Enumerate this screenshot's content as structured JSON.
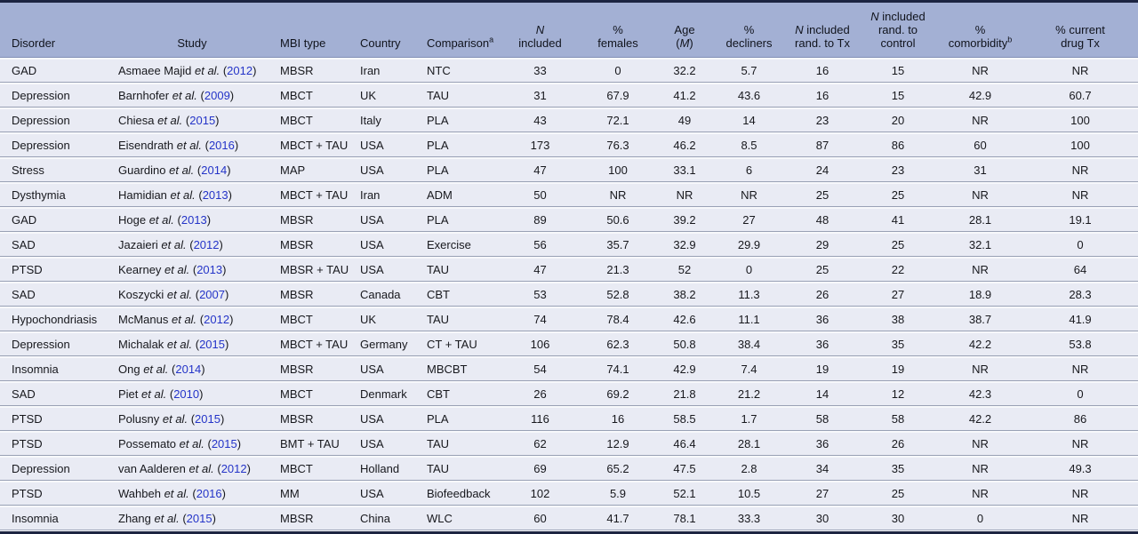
{
  "punct": {
    "open": "(",
    "close": ")"
  },
  "colors": {
    "top_bottom_rule": "#1c2441",
    "header_bg": "#a3b0d4",
    "row_bg": "#e9ebf4",
    "row_separator": "#99a1b5",
    "year_link": "#2434c8",
    "body_text": "#17181d"
  },
  "table": {
    "columns": [
      {
        "id": "disorder",
        "lines": [
          [
            {
              "t": "Disorder"
            }
          ]
        ]
      },
      {
        "id": "study",
        "lines": [
          [
            {
              "t": "Study"
            }
          ]
        ]
      },
      {
        "id": "mbi",
        "lines": [
          [
            {
              "t": "MBI type"
            }
          ]
        ]
      },
      {
        "id": "country",
        "lines": [
          [
            {
              "t": "Country"
            }
          ]
        ]
      },
      {
        "id": "comparison",
        "lines": [
          [
            {
              "t": "Comparison"
            },
            {
              "t": "a",
              "sup": true
            }
          ]
        ]
      },
      {
        "id": "n_included",
        "lines": [
          [
            {
              "t": "N",
              "i": true
            }
          ],
          [
            {
              "t": "included"
            }
          ]
        ]
      },
      {
        "id": "pct_females",
        "lines": [
          [
            {
              "t": "%"
            }
          ],
          [
            {
              "t": "females"
            }
          ]
        ]
      },
      {
        "id": "age_m",
        "lines": [
          [
            {
              "t": "Age"
            }
          ],
          [
            {
              "t": "("
            },
            {
              "t": "M",
              "i": true
            },
            {
              "t": ")"
            }
          ]
        ]
      },
      {
        "id": "pct_decliners",
        "lines": [
          [
            {
              "t": "%"
            }
          ],
          [
            {
              "t": "decliners"
            }
          ]
        ]
      },
      {
        "id": "n_rand_tx",
        "lines": [
          [
            {
              "t": "N",
              "i": true
            },
            {
              "t": " included"
            }
          ],
          [
            {
              "t": "rand. to Tx"
            }
          ]
        ]
      },
      {
        "id": "n_rand_control",
        "lines": [
          [
            {
              "t": "N",
              "i": true
            },
            {
              "t": " included"
            }
          ],
          [
            {
              "t": "rand. to"
            }
          ],
          [
            {
              "t": "control"
            }
          ]
        ]
      },
      {
        "id": "pct_comorbidity",
        "lines": [
          [
            {
              "t": "%"
            }
          ],
          [
            {
              "t": "comorbidity"
            },
            {
              "t": "b",
              "sup": true
            }
          ]
        ]
      },
      {
        "id": "pct_drug_tx",
        "lines": [
          [
            {
              "t": "% current"
            }
          ],
          [
            {
              "t": "drug Tx"
            }
          ]
        ]
      }
    ],
    "rows": [
      {
        "disorder": "GAD",
        "study_name": "Asmaee Majid",
        "study_suffix": "et al.",
        "year": "2012",
        "mbi": "MBSR",
        "country": "Iran",
        "comparison": "NTC",
        "n_included": "33",
        "pct_females": "0",
        "age_m": "32.2",
        "pct_decliners": "5.7",
        "n_rand_tx": "16",
        "n_rand_control": "15",
        "pct_comorbidity": "NR",
        "pct_drug_tx": "NR"
      },
      {
        "disorder": "Depression",
        "study_name": "Barnhofer",
        "study_suffix": "et al.",
        "year": "2009",
        "mbi": "MBCT",
        "country": "UK",
        "comparison": "TAU",
        "n_included": "31",
        "pct_females": "67.9",
        "age_m": "41.2",
        "pct_decliners": "43.6",
        "n_rand_tx": "16",
        "n_rand_control": "15",
        "pct_comorbidity": "42.9",
        "pct_drug_tx": "60.7"
      },
      {
        "disorder": "Depression",
        "study_name": "Chiesa",
        "study_suffix": "et al.",
        "year": "2015",
        "mbi": "MBCT",
        "country": "Italy",
        "comparison": "PLA",
        "n_included": "43",
        "pct_females": "72.1",
        "age_m": "49",
        "pct_decliners": "14",
        "n_rand_tx": "23",
        "n_rand_control": "20",
        "pct_comorbidity": "NR",
        "pct_drug_tx": "100"
      },
      {
        "disorder": "Depression",
        "study_name": "Eisendrath",
        "study_suffix": "et al.",
        "year": "2016",
        "mbi": "MBCT + TAU",
        "country": "USA",
        "comparison": "PLA",
        "n_included": "173",
        "pct_females": "76.3",
        "age_m": "46.2",
        "pct_decliners": "8.5",
        "n_rand_tx": "87",
        "n_rand_control": "86",
        "pct_comorbidity": "60",
        "pct_drug_tx": "100"
      },
      {
        "disorder": "Stress",
        "study_name": "Guardino",
        "study_suffix": "et al.",
        "year": "2014",
        "mbi": "MAP",
        "country": "USA",
        "comparison": "PLA",
        "n_included": "47",
        "pct_females": "100",
        "age_m": "33.1",
        "pct_decliners": "6",
        "n_rand_tx": "24",
        "n_rand_control": "23",
        "pct_comorbidity": "31",
        "pct_drug_tx": "NR"
      },
      {
        "disorder": "Dysthymia",
        "study_name": "Hamidian",
        "study_suffix": "et al.",
        "year": "2013",
        "mbi": "MBCT + TAU",
        "country": "Iran",
        "comparison": "ADM",
        "n_included": "50",
        "pct_females": "NR",
        "age_m": "NR",
        "pct_decliners": "NR",
        "n_rand_tx": "25",
        "n_rand_control": "25",
        "pct_comorbidity": "NR",
        "pct_drug_tx": "NR"
      },
      {
        "disorder": "GAD",
        "study_name": "Hoge",
        "study_suffix": "et al.",
        "year": "2013",
        "mbi": "MBSR",
        "country": "USA",
        "comparison": "PLA",
        "n_included": "89",
        "pct_females": "50.6",
        "age_m": "39.2",
        "pct_decliners": "27",
        "n_rand_tx": "48",
        "n_rand_control": "41",
        "pct_comorbidity": "28.1",
        "pct_drug_tx": "19.1"
      },
      {
        "disorder": "SAD",
        "study_name": "Jazaieri",
        "study_suffix": "et al.",
        "year": "2012",
        "mbi": "MBSR",
        "country": "USA",
        "comparison": "Exercise",
        "n_included": "56",
        "pct_females": "35.7",
        "age_m": "32.9",
        "pct_decliners": "29.9",
        "n_rand_tx": "29",
        "n_rand_control": "25",
        "pct_comorbidity": "32.1",
        "pct_drug_tx": "0"
      },
      {
        "disorder": "PTSD",
        "study_name": "Kearney",
        "study_suffix": "et al.",
        "year": "2013",
        "mbi": "MBSR + TAU",
        "country": "USA",
        "comparison": "TAU",
        "n_included": "47",
        "pct_females": "21.3",
        "age_m": "52",
        "pct_decliners": "0",
        "n_rand_tx": "25",
        "n_rand_control": "22",
        "pct_comorbidity": "NR",
        "pct_drug_tx": "64"
      },
      {
        "disorder": "SAD",
        "study_name": "Koszycki",
        "study_suffix": "et al.",
        "year": "2007",
        "mbi": "MBSR",
        "country": "Canada",
        "comparison": "CBT",
        "n_included": "53",
        "pct_females": "52.8",
        "age_m": "38.2",
        "pct_decliners": "11.3",
        "n_rand_tx": "26",
        "n_rand_control": "27",
        "pct_comorbidity": "18.9",
        "pct_drug_tx": "28.3"
      },
      {
        "disorder": "Hypochondriasis",
        "study_name": "McManus",
        "study_suffix": "et al.",
        "year": "2012",
        "mbi": "MBCT",
        "country": "UK",
        "comparison": "TAU",
        "n_included": "74",
        "pct_females": "78.4",
        "age_m": "42.6",
        "pct_decliners": "11.1",
        "n_rand_tx": "36",
        "n_rand_control": "38",
        "pct_comorbidity": "38.7",
        "pct_drug_tx": "41.9"
      },
      {
        "disorder": "Depression",
        "study_name": "Michalak",
        "study_suffix": "et al.",
        "year": "2015",
        "mbi": "MBCT + TAU",
        "country": "Germany",
        "comparison": "CT + TAU",
        "n_included": "106",
        "pct_females": "62.3",
        "age_m": "50.8",
        "pct_decliners": "38.4",
        "n_rand_tx": "36",
        "n_rand_control": "35",
        "pct_comorbidity": "42.2",
        "pct_drug_tx": "53.8"
      },
      {
        "disorder": "Insomnia",
        "study_name": "Ong",
        "study_suffix": "et al.",
        "year": "2014",
        "mbi": "MBSR",
        "country": "USA",
        "comparison": "MBCBT",
        "n_included": "54",
        "pct_females": "74.1",
        "age_m": "42.9",
        "pct_decliners": "7.4",
        "n_rand_tx": "19",
        "n_rand_control": "19",
        "pct_comorbidity": "NR",
        "pct_drug_tx": "NR"
      },
      {
        "disorder": "SAD",
        "study_name": "Piet",
        "study_suffix": "et al.",
        "year": "2010",
        "mbi": "MBCT",
        "country": "Denmark",
        "comparison": "CBT",
        "n_included": "26",
        "pct_females": "69.2",
        "age_m": "21.8",
        "pct_decliners": "21.2",
        "n_rand_tx": "14",
        "n_rand_control": "12",
        "pct_comorbidity": "42.3",
        "pct_drug_tx": "0"
      },
      {
        "disorder": "PTSD",
        "study_name": "Polusny",
        "study_suffix": "et al.",
        "year": "2015",
        "mbi": "MBSR",
        "country": "USA",
        "comparison": "PLA",
        "n_included": "116",
        "pct_females": "16",
        "age_m": "58.5",
        "pct_decliners": "1.7",
        "n_rand_tx": "58",
        "n_rand_control": "58",
        "pct_comorbidity": "42.2",
        "pct_drug_tx": "86"
      },
      {
        "disorder": "PTSD",
        "study_name": "Possemato",
        "study_suffix": "et al.",
        "year": "2015",
        "mbi": "BMT + TAU",
        "country": "USA",
        "comparison": "TAU",
        "n_included": "62",
        "pct_females": "12.9",
        "age_m": "46.4",
        "pct_decliners": "28.1",
        "n_rand_tx": "36",
        "n_rand_control": "26",
        "pct_comorbidity": "NR",
        "pct_drug_tx": "NR"
      },
      {
        "disorder": "Depression",
        "study_name": "van Aalderen",
        "study_suffix": "et al.",
        "year": "2012",
        "mbi": "MBCT",
        "country": "Holland",
        "comparison": "TAU",
        "n_included": "69",
        "pct_females": "65.2",
        "age_m": "47.5",
        "pct_decliners": "2.8",
        "n_rand_tx": "34",
        "n_rand_control": "35",
        "pct_comorbidity": "NR",
        "pct_drug_tx": "49.3"
      },
      {
        "disorder": "PTSD",
        "study_name": "Wahbeh",
        "study_suffix": "et al.",
        "year": "2016",
        "mbi": "MM",
        "country": "USA",
        "comparison": "Biofeedback",
        "n_included": "102",
        "pct_females": "5.9",
        "age_m": "52.1",
        "pct_decliners": "10.5",
        "n_rand_tx": "27",
        "n_rand_control": "25",
        "pct_comorbidity": "NR",
        "pct_drug_tx": "NR"
      },
      {
        "disorder": "Insomnia",
        "study_name": "Zhang",
        "study_suffix": "et al.",
        "year": "2015",
        "mbi": "MBSR",
        "country": "China",
        "comparison": "WLC",
        "n_included": "60",
        "pct_females": "41.7",
        "age_m": "78.1",
        "pct_decliners": "33.3",
        "n_rand_tx": "30",
        "n_rand_control": "30",
        "pct_comorbidity": "0",
        "pct_drug_tx": "NR"
      }
    ]
  }
}
